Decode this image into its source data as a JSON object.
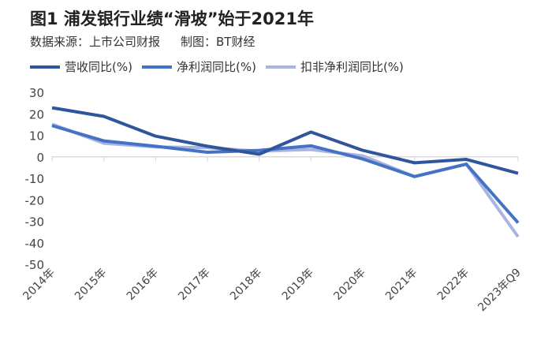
{
  "header": {
    "title": "图1 浦发银行业绩“滑坡”始于2021年",
    "source": "数据来源：上市公司财报",
    "credit": "制图：BT财经"
  },
  "chart_data": {
    "type": "line",
    "title": "图1 浦发银行业绩“滑坡”始于2021年",
    "categories": [
      "2014年",
      "2015年",
      "2016年",
      "2017年",
      "2018年",
      "2019年",
      "2020年",
      "2021年",
      "2022年",
      "2023年Q9"
    ],
    "yticks": [
      "30",
      "20",
      "10",
      "0",
      "-10",
      "-20",
      "-30",
      "-40",
      "-50"
    ],
    "ylim": [
      -50,
      30
    ],
    "legend_position": "top",
    "series": [
      {
        "name": "营收同比(%)",
        "color": "#2f559c",
        "values": [
          22.8,
          18.8,
          9.6,
          4.9,
          1.2,
          11.5,
          3.0,
          -2.8,
          -1.2,
          -7.7
        ]
      },
      {
        "name": "净利润同比(%)",
        "color": "#4472c4",
        "values": [
          14.5,
          7.4,
          4.9,
          2.1,
          3.0,
          5.1,
          -1.0,
          -9.2,
          -3.4,
          -30.7
        ]
      },
      {
        "name": "扣非净利润同比(%)",
        "color": "#a9b4e0",
        "values": [
          15.2,
          6.3,
          4.6,
          4.2,
          2.6,
          3.4,
          0.4,
          -9.2,
          -3.4,
          -37.2
        ]
      }
    ]
  }
}
